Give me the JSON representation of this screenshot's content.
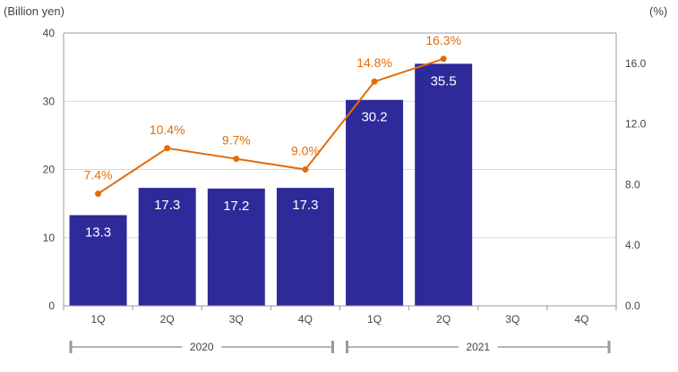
{
  "chart_data": {
    "type": "bar",
    "left_unit": "(Billion yen)",
    "right_unit": "(%)",
    "categories": [
      "1Q",
      "2Q",
      "3Q",
      "4Q",
      "1Q",
      "2Q",
      "3Q",
      "4Q"
    ],
    "groups": [
      {
        "label": "2020",
        "span": [
          0,
          3
        ]
      },
      {
        "label": "2021",
        "span": [
          4,
          7
        ]
      }
    ],
    "series": [
      {
        "type": "bar",
        "axis": "left",
        "color": "#2e2a9a",
        "values": [
          13.3,
          17.3,
          17.2,
          17.3,
          30.2,
          35.5,
          null,
          null
        ],
        "labels": [
          "13.3",
          "17.3",
          "17.2",
          "17.3",
          "30.2",
          "35.5",
          "",
          ""
        ]
      },
      {
        "type": "line",
        "axis": "right",
        "color": "#e36c0a",
        "values": [
          7.4,
          10.4,
          9.7,
          9.0,
          14.8,
          16.3,
          null,
          null
        ],
        "labels": [
          "7.4%",
          "10.4%",
          "9.7%",
          "9.0%",
          "14.8%",
          "16.3%",
          "",
          ""
        ]
      }
    ],
    "left_axis": {
      "ylim": [
        0,
        40
      ],
      "ticks": [
        "0",
        "10",
        "20",
        "30",
        "40"
      ]
    },
    "right_axis": {
      "ylim": [
        0,
        18
      ],
      "ticks": [
        "0.0",
        "4.0",
        "8.0",
        "12.0",
        "16.0"
      ]
    },
    "grid": true
  }
}
